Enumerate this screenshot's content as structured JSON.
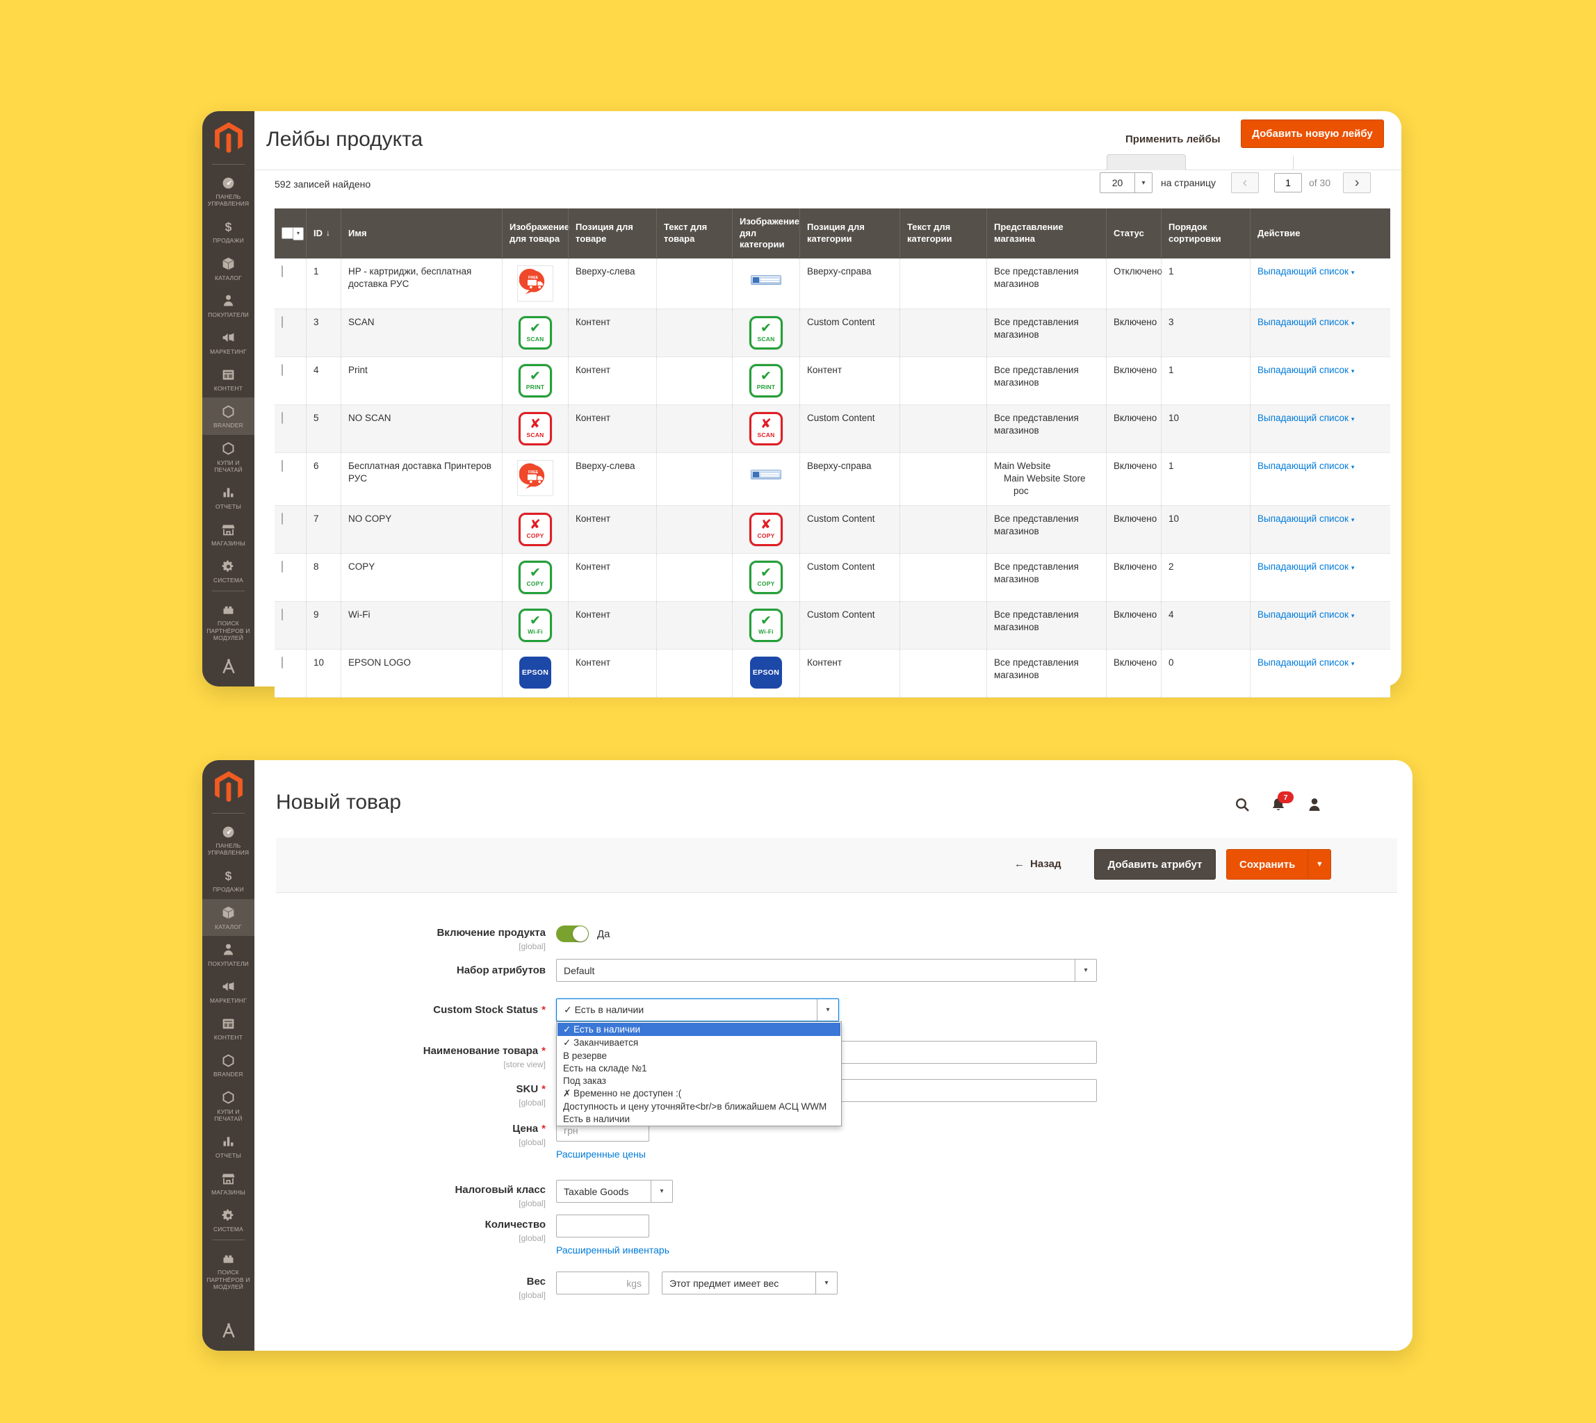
{
  "theme": {
    "background": "#FFD947",
    "accent_orange": "#EB5202",
    "link_blue": "#007BDB",
    "toggle_green": "#79A22E",
    "selected_option_blue": "#3A77D6",
    "badge_green": "#23A038",
    "badge_red": "#E01E25",
    "epson_blue": "#1C48A8",
    "sidebar_dark": "#453E38",
    "sidebar_active": "#5D564E",
    "table_header_bg": "#55504A"
  },
  "sidebar": {
    "items": [
      {
        "key": "dashboard",
        "label": "ПАНЕЛЬ УПРАВЛЕНИЯ",
        "icon": "dashboard-icon"
      },
      {
        "key": "sales",
        "label": "ПРОДАЖИ",
        "icon": "sales-icon"
      },
      {
        "key": "catalog",
        "label": "КАТАЛОГ",
        "icon": "catalog-icon"
      },
      {
        "key": "customers",
        "label": "ПОКУПАТЕЛИ",
        "icon": "customers-icon"
      },
      {
        "key": "marketing",
        "label": "МАРКЕТИНГ",
        "icon": "marketing-icon"
      },
      {
        "key": "content",
        "label": "КОНТЕНТ",
        "icon": "content-icon"
      },
      {
        "key": "brander",
        "label": "BRANDER",
        "icon": "brander-icon"
      },
      {
        "key": "buy-print",
        "label": "КУПИ И ПЕЧАТАЙ",
        "icon": "buy-print-icon"
      },
      {
        "key": "reports",
        "label": "ОТЧЕТЫ",
        "icon": "reports-icon"
      },
      {
        "key": "stores",
        "label": "МАГАЗИНЫ",
        "icon": "stores-icon"
      },
      {
        "key": "system",
        "label": "СИСТЕМА",
        "icon": "system-icon"
      },
      {
        "key": "partners",
        "label": "ПОИСК ПАРТНЁРОВ И МОДУЛЕЙ",
        "icon": "partners-icon"
      }
    ]
  },
  "labels_page": {
    "title": "Лейбы продукта",
    "apply_button": "Применить лейбы",
    "add_button": "Добавить новую лейбу",
    "records_found": "592 записей найдено",
    "pagination": {
      "per_page": "20",
      "per_page_label": "на страницу",
      "page": "1",
      "total_label": "of 30"
    },
    "table": {
      "headers": [
        "ID",
        "Имя",
        "Изображение для товара",
        "Позиция для товаре",
        "Текст для товара",
        "Изображение дял категории",
        "Позиция для категории",
        "Текст для категории",
        "Представление магазина",
        "Статус",
        "Порядок сортировки",
        "Действие"
      ],
      "action_label": "Выпадающий список",
      "rows": [
        {
          "id": "1",
          "name": "HP - картриджи, бесплатная доставка РУС",
          "product_image": {
            "type": "truck"
          },
          "product_position": "Вверху-слева",
          "product_text": "",
          "category_image": {
            "type": "banner"
          },
          "category_position": "Вверху-справа",
          "category_text": "",
          "store_view": [
            "Все представления магазинов"
          ],
          "status": "Отключено",
          "sort_order": "1"
        },
        {
          "id": "3",
          "name": "SCAN",
          "product_image": {
            "type": "badge",
            "variant": "check",
            "label": "SCAN"
          },
          "product_position": "Контент",
          "product_text": "",
          "category_image": {
            "type": "badge",
            "variant": "check",
            "label": "SCAN"
          },
          "category_position": "Custom Content",
          "category_text": "",
          "store_view": [
            "Все представления магазинов"
          ],
          "status": "Включено",
          "sort_order": "3"
        },
        {
          "id": "4",
          "name": "Print",
          "product_image": {
            "type": "badge",
            "variant": "check",
            "label": "PRINT"
          },
          "product_position": "Контент",
          "product_text": "",
          "category_image": {
            "type": "badge",
            "variant": "check",
            "label": "PRINT"
          },
          "category_position": "Контент",
          "category_text": "",
          "store_view": [
            "Все представления магазинов"
          ],
          "status": "Включено",
          "sort_order": "1"
        },
        {
          "id": "5",
          "name": "NO SCAN",
          "product_image": {
            "type": "badge",
            "variant": "cross",
            "label": "SCAN"
          },
          "product_position": "Контент",
          "product_text": "",
          "category_image": {
            "type": "badge",
            "variant": "cross",
            "label": "SCAN"
          },
          "category_position": "Custom Content",
          "category_text": "",
          "store_view": [
            "Все представления магазинов"
          ],
          "status": "Включено",
          "sort_order": "10"
        },
        {
          "id": "6",
          "name": "Бесплатная доставка Принтеров РУС",
          "product_image": {
            "type": "truck"
          },
          "product_position": "Вверху-слева",
          "product_text": "",
          "category_image": {
            "type": "banner"
          },
          "category_position": "Вверху-справа",
          "category_text": "",
          "store_view": [
            "Main Website",
            "Main Website Store",
            "рос"
          ],
          "status": "Включено",
          "sort_order": "1"
        },
        {
          "id": "7",
          "name": "NO COPY",
          "product_image": {
            "type": "badge",
            "variant": "cross",
            "label": "COPY"
          },
          "product_position": "Контент",
          "product_text": "",
          "category_image": {
            "type": "badge",
            "variant": "cross",
            "label": "COPY"
          },
          "category_position": "Custom Content",
          "category_text": "",
          "store_view": [
            "Все представления магазинов"
          ],
          "status": "Включено",
          "sort_order": "10"
        },
        {
          "id": "8",
          "name": "COPY",
          "product_image": {
            "type": "badge",
            "variant": "check",
            "label": "COPY"
          },
          "product_position": "Контент",
          "product_text": "",
          "category_image": {
            "type": "badge",
            "variant": "check",
            "label": "COPY"
          },
          "category_position": "Custom Content",
          "category_text": "",
          "store_view": [
            "Все представления магазинов"
          ],
          "status": "Включено",
          "sort_order": "2"
        },
        {
          "id": "9",
          "name": "Wi-Fi",
          "product_image": {
            "type": "badge",
            "variant": "check",
            "label": "Wi-Fi"
          },
          "product_position": "Контент",
          "product_text": "",
          "category_image": {
            "type": "badge",
            "variant": "check",
            "label": "Wi-Fi"
          },
          "category_position": "Custom Content",
          "category_text": "",
          "store_view": [
            "Все представления магазинов"
          ],
          "status": "Включено",
          "sort_order": "4"
        },
        {
          "id": "10",
          "name": "EPSON LOGO",
          "product_image": {
            "type": "epson",
            "label": "EPSON"
          },
          "product_position": "Контент",
          "product_text": "",
          "category_image": {
            "type": "epson",
            "label": "EPSON"
          },
          "category_position": "Контент",
          "category_text": "",
          "store_view": [
            "Все представления магазинов"
          ],
          "status": "Включено",
          "sort_order": "0"
        }
      ]
    }
  },
  "product_page": {
    "title": "Новый товар",
    "notification_count": "7",
    "toolbar": {
      "back_label": "Назад",
      "add_attribute_label": "Добавить атрибут",
      "save_label": "Сохранить"
    },
    "form": {
      "enable_label": "Включение продукта",
      "enable_scope": "[global]",
      "enable_value": "Да",
      "attribute_set_label": "Набор атрибутов",
      "attribute_set_value": "Default",
      "stock_status_label": "Custom Stock Status",
      "stock_status_value": "✓ Есть в наличии",
      "name_label": "Наименование товара",
      "name_scope": "[store view]",
      "sku_label": "SKU",
      "sku_scope": "[global]",
      "price_label": "Цена",
      "price_scope": "[global]",
      "price_unit": "грн",
      "advanced_pricing_link": "Расширенные цены",
      "tax_label": "Налоговый класс",
      "tax_scope": "[global]",
      "tax_value": "Taxable Goods",
      "qty_label": "Количество",
      "qty_scope": "[global]",
      "advanced_inventory_link": "Расширенный инвентарь",
      "weight_label": "Вес",
      "weight_scope": "[global]",
      "weight_unit": "kgs",
      "weight_type_value": "Этот предмет имеет вес"
    },
    "stock_dropdown_options": [
      {
        "text": "✓ Есть в наличии",
        "selected": true
      },
      {
        "text": "✓ Заканчивается",
        "selected": false
      },
      {
        "text": "В резерве",
        "selected": false
      },
      {
        "text": "Есть на складе №1",
        "selected": false
      },
      {
        "text": "Под заказ",
        "selected": false
      },
      {
        "text": "✗ Временно не доступен :(",
        "selected": false
      },
      {
        "text": "Доступность и цену уточняйте<br/>в ближайшем АСЦ WWM",
        "selected": false
      },
      {
        "text": "Есть в наличии",
        "selected": false
      }
    ]
  }
}
